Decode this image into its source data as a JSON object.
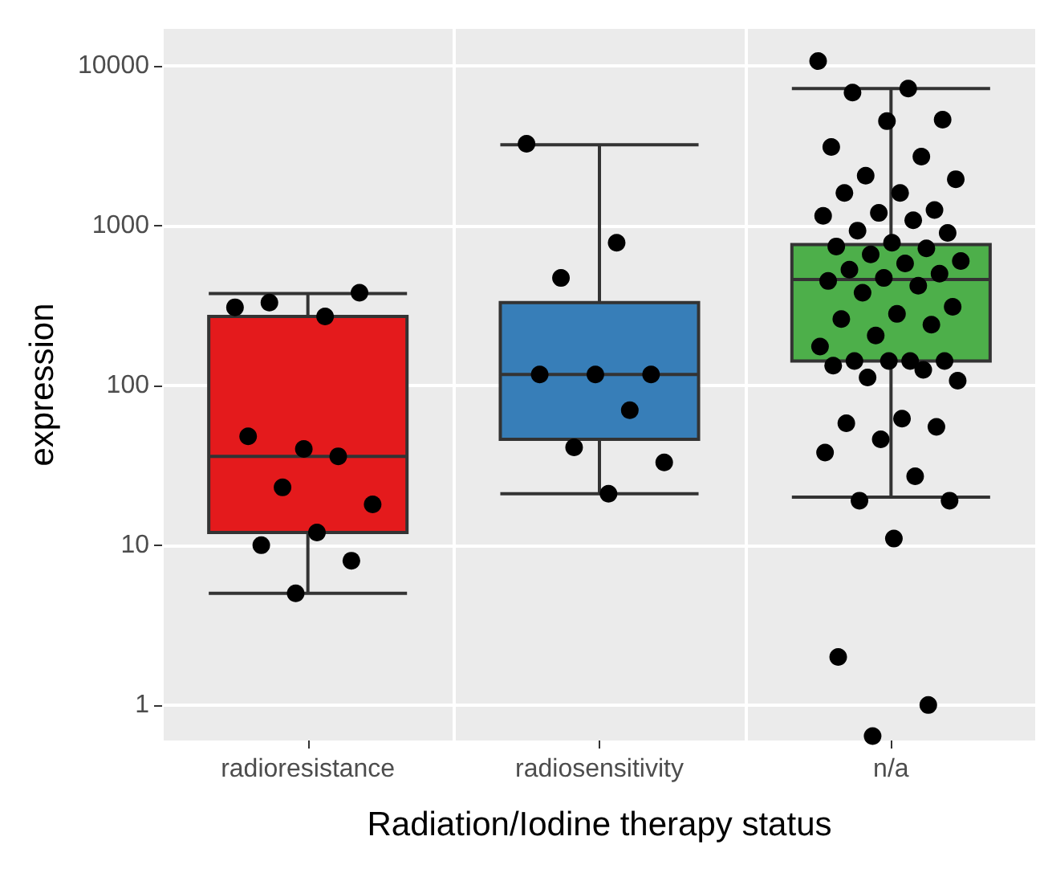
{
  "chart_data": {
    "type": "box",
    "xlabel": "Radiation/Iodine therapy status",
    "ylabel": "expression",
    "categories": [
      "radioresistance",
      "radiosensitivity",
      "n/a"
    ],
    "colors": [
      "#e41a1c",
      "#377eb8",
      "#4daf4a"
    ],
    "boxes": [
      {
        "low": 5,
        "q1": 12,
        "median": 36,
        "q3": 270,
        "high": 375
      },
      {
        "low": 21,
        "q1": 46,
        "median": 117,
        "q3": 330,
        "high": 3200
      },
      {
        "low": 20,
        "q1": 142,
        "median": 460,
        "q3": 760,
        "high": 7200
      }
    ],
    "log": true,
    "ylim": [
      0.6,
      17000
    ],
    "yticks": [
      1,
      10,
      100,
      1000,
      10000
    ],
    "grid": true,
    "series": [
      {
        "type": "scatter",
        "color": "#000000",
        "marker": "circle",
        "x": [
          "radioresistance",
          "radioresistance",
          "radioresistance",
          "radioresistance",
          "radioresistance",
          "radioresistance",
          "radioresistance",
          "radioresistance",
          "radioresistance",
          "radioresistance",
          "radioresistance",
          "radioresistance",
          "radioresistance"
        ],
        "values": [
          308,
          270,
          330,
          380,
          40,
          48,
          36,
          23,
          18,
          12,
          10,
          8,
          5
        ]
      },
      {
        "type": "scatter",
        "color": "#000000",
        "marker": "circle",
        "x": [
          "radiosensitivity",
          "radiosensitivity",
          "radiosensitivity",
          "radiosensitivity",
          "radiosensitivity",
          "radiosensitivity",
          "radiosensitivity",
          "radiosensitivity",
          "radiosensitivity",
          "radiosensitivity"
        ],
        "values": [
          3250,
          780,
          470,
          117,
          117,
          117,
          70,
          41,
          33,
          21
        ]
      },
      {
        "type": "scatter",
        "color": "#000000",
        "marker": "circle",
        "x": [
          "n/a",
          "n/a",
          "n/a",
          "n/a",
          "n/a",
          "n/a",
          "n/a",
          "n/a",
          "n/a",
          "n/a",
          "n/a",
          "n/a",
          "n/a",
          "n/a",
          "n/a",
          "n/a",
          "n/a",
          "n/a",
          "n/a",
          "n/a",
          "n/a",
          "n/a",
          "n/a",
          "n/a",
          "n/a",
          "n/a",
          "n/a",
          "n/a",
          "n/a",
          "n/a",
          "n/a",
          "n/a",
          "n/a",
          "n/a",
          "n/a",
          "n/a",
          "n/a",
          "n/a",
          "n/a",
          "n/a",
          "n/a",
          "n/a",
          "n/a",
          "n/a",
          "n/a",
          "n/a",
          "n/a",
          "n/a",
          "n/a",
          "n/a",
          "n/a",
          "n/a",
          "n/a",
          "n/a",
          "n/a"
        ],
        "values": [
          10700,
          7200,
          6800,
          4600,
          4500,
          3100,
          2700,
          2050,
          1950,
          1600,
          1600,
          1250,
          1200,
          1150,
          1080,
          930,
          900,
          780,
          740,
          720,
          660,
          600,
          580,
          530,
          500,
          470,
          450,
          420,
          380,
          310,
          280,
          260,
          240,
          205,
          175,
          142,
          142,
          142,
          142,
          133,
          125,
          112,
          107,
          62,
          58,
          55,
          46,
          38,
          27,
          19,
          19,
          11,
          2,
          1,
          0.64
        ]
      }
    ]
  }
}
